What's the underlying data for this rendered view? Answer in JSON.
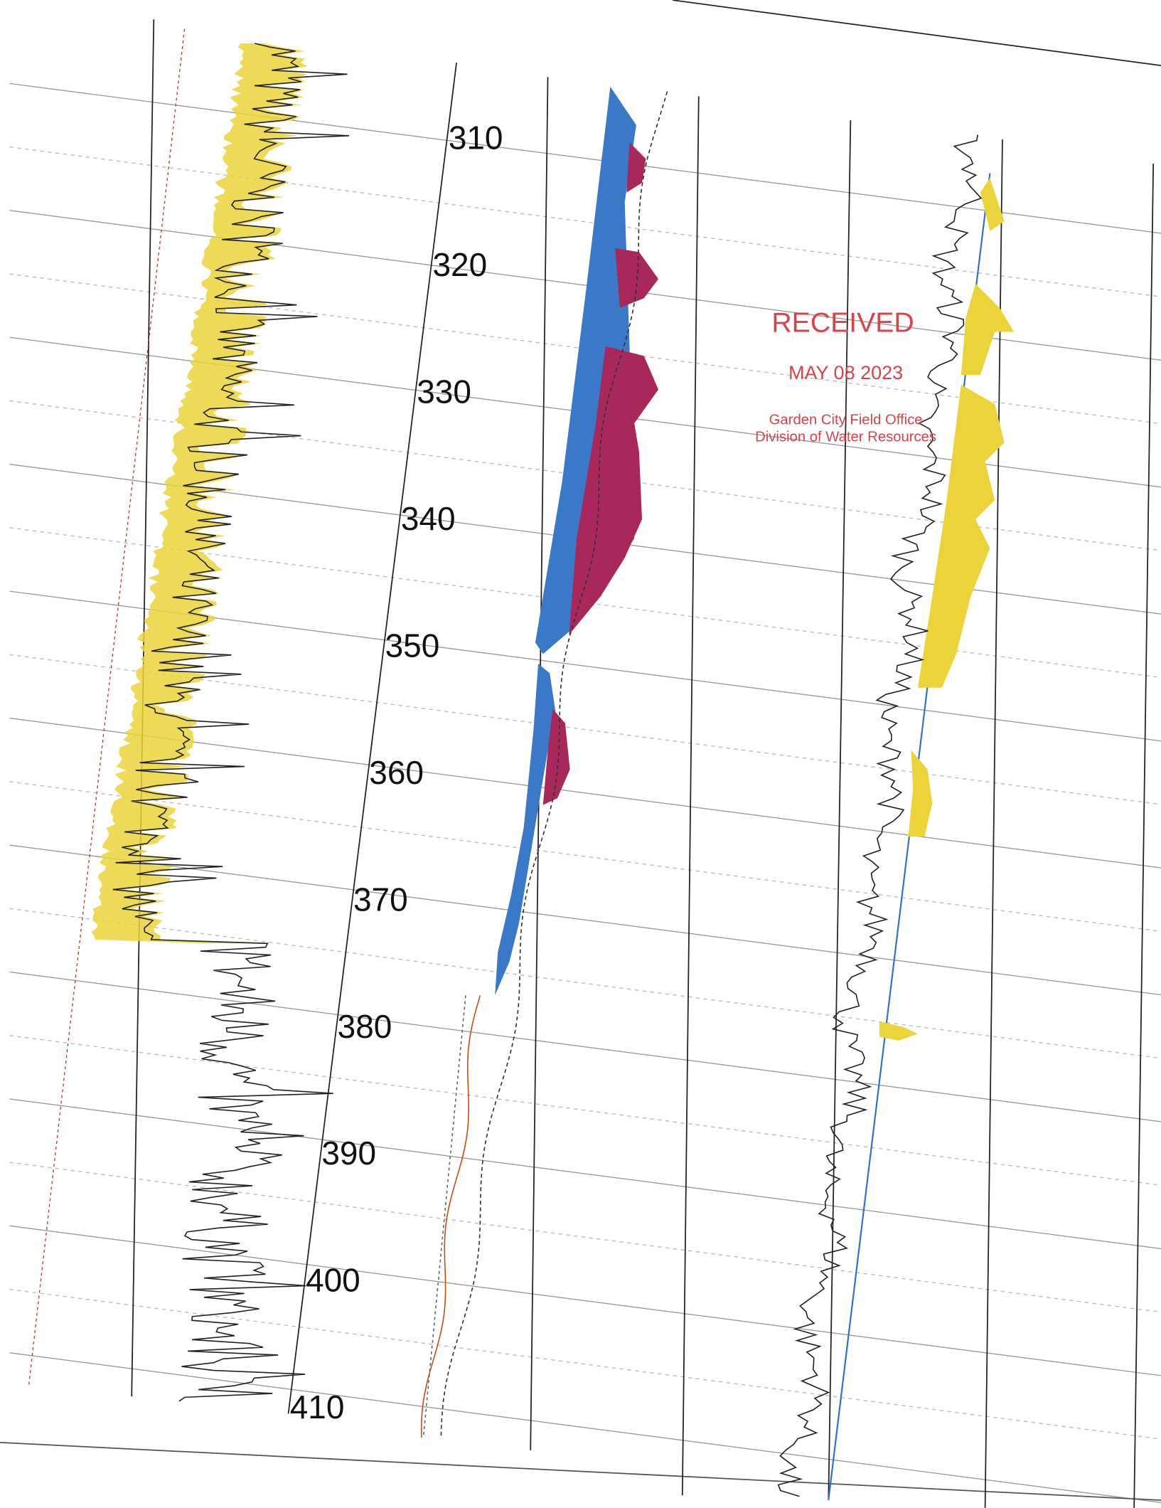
{
  "depth_labels": [
    310,
    320,
    330,
    340,
    350,
    360,
    370,
    380,
    390,
    400,
    410
  ],
  "stamp": {
    "title": "RECEIVED",
    "date": "MAY 08 2023",
    "office": "Garden City Field Office",
    "division": "Division of Water Resources"
  }
}
